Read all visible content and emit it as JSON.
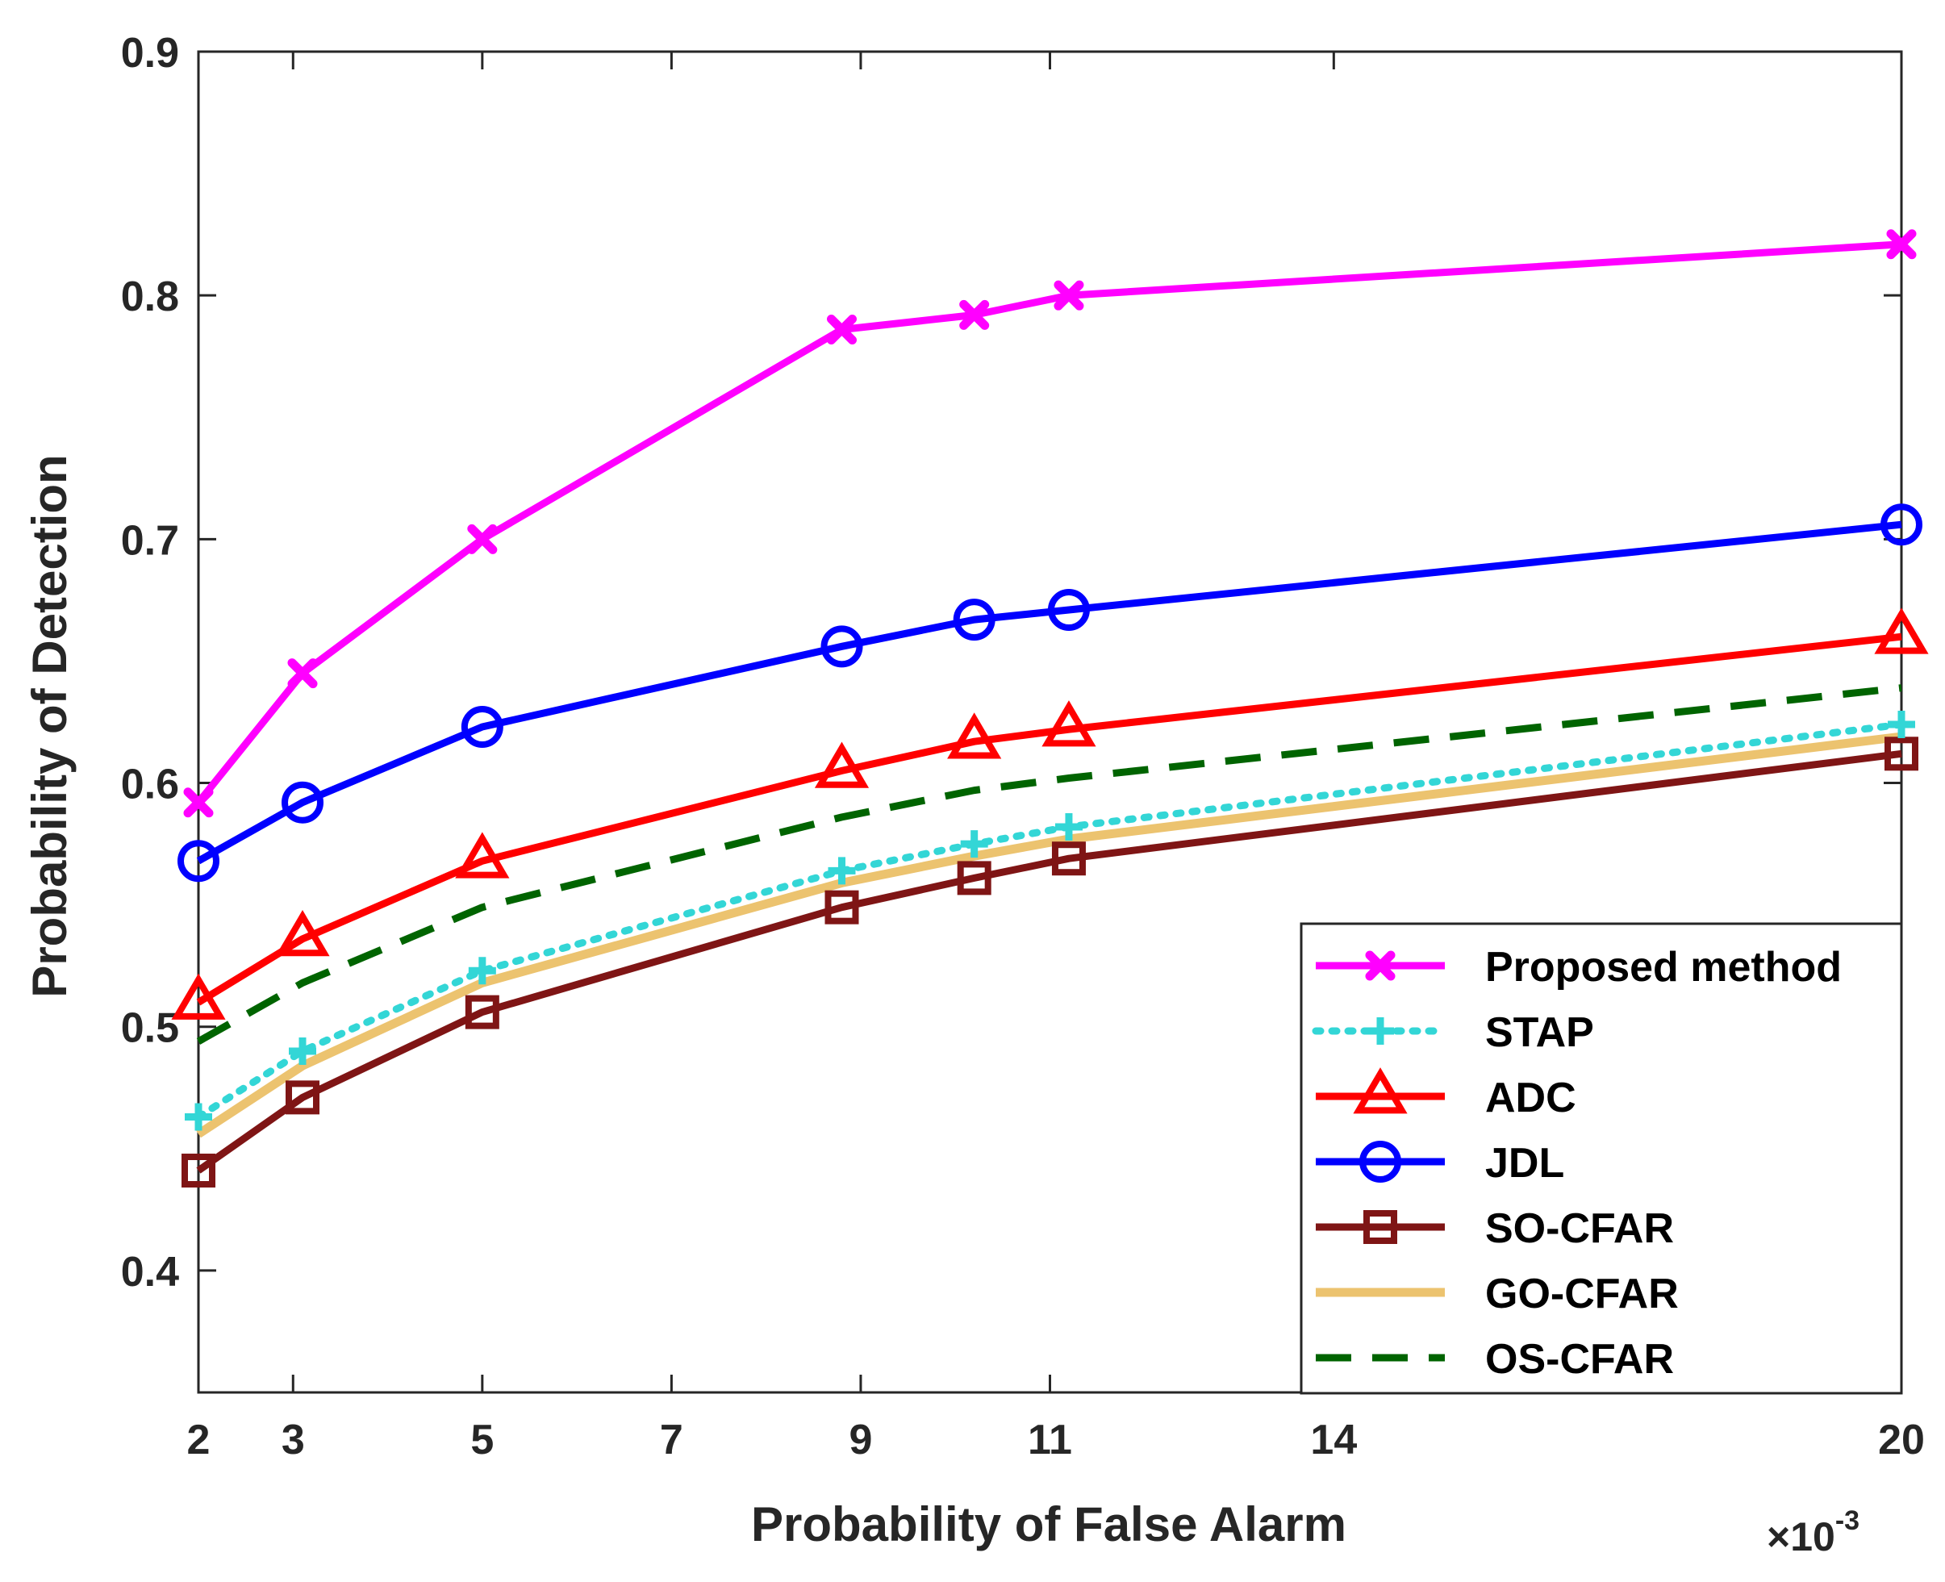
{
  "chart_data": {
    "type": "line",
    "title": "",
    "xlabel": "Probability of False Alarm",
    "ylabel": "Probability of Detection",
    "x_multiplier": "×10",
    "x_multiplier_exponent": "-3",
    "xlim": [
      2,
      20
    ],
    "ylim": [
      0.35,
      0.9
    ],
    "xticks": [
      2,
      3,
      5,
      7,
      9,
      11,
      14,
      20
    ],
    "xtick_labels": [
      "2",
      "3",
      "5",
      "7",
      "9",
      "11",
      "14",
      "20"
    ],
    "yticks": [
      0.4,
      0.5,
      0.6,
      0.7,
      0.8,
      0.9
    ],
    "ytick_labels": [
      "0.4",
      "0.5",
      "0.6",
      "0.7",
      "0.8",
      "0.9"
    ],
    "grid": false,
    "legend_position": "bottom-right",
    "series": [
      {
        "name": "Proposed method",
        "color": "#ff00ff",
        "style": "solid",
        "marker": "x",
        "x": [
          2,
          3.1,
          5,
          8.8,
          10.2,
          11.2,
          20
        ],
        "y": [
          0.592,
          0.645,
          0.7,
          0.786,
          0.792,
          0.8,
          0.821
        ]
      },
      {
        "name": "STAP",
        "color": "#33d6d6",
        "style": "dotted",
        "marker": "plus",
        "x": [
          2,
          3.1,
          5,
          8.8,
          10.2,
          11.2,
          20
        ],
        "y": [
          0.463,
          0.49,
          0.523,
          0.564,
          0.575,
          0.582,
          0.624
        ]
      },
      {
        "name": "ADC",
        "color": "#ff0000",
        "style": "solid",
        "marker": "triangle",
        "x": [
          2,
          3.1,
          5,
          8.8,
          10.2,
          11.2,
          20
        ],
        "y": [
          0.51,
          0.536,
          0.568,
          0.605,
          0.617,
          0.622,
          0.66
        ]
      },
      {
        "name": "JDL",
        "color": "#0000ff",
        "style": "solid",
        "marker": "circle",
        "x": [
          2,
          3.1,
          5,
          8.8,
          10.2,
          11.2,
          20
        ],
        "y": [
          0.568,
          0.592,
          0.623,
          0.656,
          0.667,
          0.671,
          0.706
        ]
      },
      {
        "name": "SO-CFAR",
        "color": "#7f1515",
        "style": "solid",
        "marker": "square",
        "x": [
          2,
          3.1,
          5,
          8.8,
          10.2,
          11.2,
          20
        ],
        "y": [
          0.441,
          0.471,
          0.506,
          0.549,
          0.561,
          0.569,
          0.612
        ]
      },
      {
        "name": "GO-CFAR",
        "color": "#ecc36f",
        "style": "solid",
        "marker": "none",
        "x": [
          2,
          3.1,
          5,
          8.8,
          10.2,
          11.2,
          20
        ],
        "y": [
          0.456,
          0.484,
          0.518,
          0.559,
          0.57,
          0.577,
          0.619
        ]
      },
      {
        "name": "OS-CFAR",
        "color": "#006400",
        "style": "dashed",
        "marker": "none",
        "x": [
          2,
          3.1,
          5,
          8.8,
          10.2,
          11.2,
          20
        ],
        "y": [
          0.494,
          0.518,
          0.549,
          0.586,
          0.597,
          0.602,
          0.639
        ]
      }
    ]
  }
}
